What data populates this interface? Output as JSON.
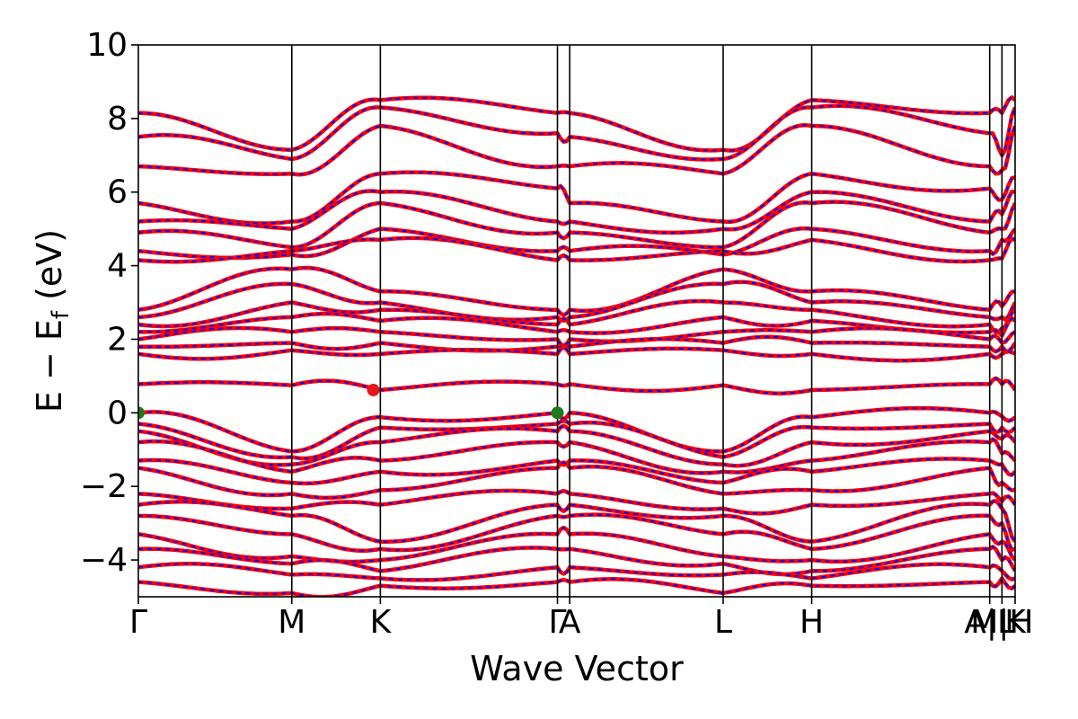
{
  "chart_data": {
    "type": "line",
    "title": "",
    "xlabel": "Wave Vector",
    "ylabel": "E − E_f (eV)",
    "ylabel_main": "E − E",
    "ylabel_sub": "f",
    "ylabel_unit": " (eV)",
    "ylim": [
      -5,
      10
    ],
    "yticks": [
      -4,
      -2,
      0,
      2,
      4,
      6,
      8,
      10
    ],
    "ytick_labels": [
      "−4",
      "−2",
      "0",
      "2",
      "4",
      "6",
      "8",
      "10"
    ],
    "xlim": [
      0,
      1
    ],
    "kpath": [
      {
        "label": "Γ",
        "x": 0.0
      },
      {
        "label": "M",
        "x": 0.175
      },
      {
        "label": "K",
        "x": 0.276
      },
      {
        "label": "Γ",
        "x": 0.478
      },
      {
        "label": "A",
        "x": 0.492
      },
      {
        "label": "L",
        "x": 0.667
      },
      {
        "label": "H",
        "x": 0.768
      },
      {
        "label": "A",
        "x": 0.971
      },
      {
        "label": "L",
        "x": 0.985
      },
      {
        "label": "M",
        "x": 0.971
      },
      {
        "label": "H",
        "x": 0.985
      },
      {
        "label": "K",
        "x": 1.0
      }
    ],
    "kpath_combined_labels": [
      {
        "label": "Γ",
        "x": 0.0
      },
      {
        "label": "M",
        "x": 0.175
      },
      {
        "label": "K",
        "x": 0.276
      },
      {
        "label": "Γ",
        "x": 0.478
      },
      {
        "label": "A",
        "x": 0.492
      },
      {
        "label": "L",
        "x": 0.667
      },
      {
        "label": "H",
        "x": 0.768
      },
      {
        "label": "A|L",
        "x": 0.971
      },
      {
        "label": "M|H",
        "x": 0.985
      },
      {
        "label": "K",
        "x": 1.0
      }
    ],
    "vertical_lines_x": [
      0.175,
      0.276,
      0.478,
      0.492,
      0.667,
      0.768,
      0.971,
      0.985
    ],
    "series": [
      {
        "color": "#ff0000",
        "style": "solid"
      },
      {
        "color": "#0000ff",
        "style": "dashed"
      }
    ],
    "bands": [
      {
        "node_energies": [
          8.15,
          7.15,
          8.5,
          8.15,
          8.15,
          7.15,
          8.5,
          8.15,
          8.15,
          8.5
        ]
      },
      {
        "node_energies": [
          7.5,
          6.9,
          8.3,
          7.6,
          7.5,
          6.9,
          8.3,
          7.6,
          7.0,
          8.3
        ]
      },
      {
        "node_energies": [
          6.7,
          6.5,
          7.8,
          6.7,
          6.7,
          6.5,
          7.8,
          6.7,
          6.6,
          7.8
        ]
      },
      {
        "node_energies": [
          5.7,
          5.2,
          6.5,
          6.1,
          5.7,
          5.2,
          6.5,
          6.1,
          5.8,
          6.4
        ]
      },
      {
        "node_energies": [
          5.2,
          5.0,
          6.0,
          5.2,
          5.2,
          5.0,
          6.0,
          5.2,
          5.4,
          6.0
        ]
      },
      {
        "node_energies": [
          4.9,
          4.5,
          5.7,
          4.9,
          4.9,
          4.5,
          5.7,
          4.9,
          5.0,
          5.7
        ]
      },
      {
        "node_energies": [
          4.4,
          4.3,
          5.0,
          4.4,
          4.4,
          4.3,
          5.0,
          4.4,
          4.7,
          5.0
        ]
      },
      {
        "node_energies": [
          4.15,
          4.4,
          4.7,
          4.15,
          4.15,
          4.4,
          4.7,
          4.15,
          4.2,
          4.7
        ]
      },
      {
        "node_energies": [
          2.8,
          3.9,
          3.3,
          2.8,
          2.8,
          3.9,
          3.3,
          2.8,
          2.9,
          3.3
        ]
      },
      {
        "node_energies": [
          2.6,
          3.5,
          3.0,
          2.6,
          2.6,
          3.5,
          3.0,
          2.6,
          2.6,
          3.0
        ]
      },
      {
        "node_energies": [
          2.4,
          3.0,
          2.8,
          2.4,
          2.4,
          3.0,
          2.8,
          2.4,
          2.3,
          2.8
        ]
      },
      {
        "node_energies": [
          2.2,
          2.6,
          2.5,
          2.2,
          2.2,
          2.6,
          2.5,
          2.2,
          2.1,
          2.5
        ]
      },
      {
        "node_energies": [
          2.0,
          2.2,
          2.2,
          2.0,
          2.0,
          2.2,
          2.2,
          2.0,
          1.9,
          2.2
        ]
      },
      {
        "node_energies": [
          1.8,
          1.9,
          1.9,
          1.8,
          1.8,
          1.9,
          1.9,
          1.8,
          1.8,
          1.9
        ]
      },
      {
        "node_energies": [
          1.6,
          1.7,
          1.6,
          1.6,
          1.6,
          1.7,
          1.6,
          1.6,
          1.6,
          1.6
        ]
      },
      {
        "node_energies": [
          0.78,
          0.75,
          0.62,
          0.78,
          0.78,
          0.75,
          0.62,
          0.78,
          0.78,
          0.62
        ]
      },
      {
        "node_energies": [
          0.0,
          -1.05,
          -0.12,
          0.0,
          0.0,
          -1.05,
          -0.12,
          0.0,
          -0.1,
          -0.12
        ]
      },
      {
        "node_energies": [
          -0.3,
          -1.2,
          -0.4,
          -0.3,
          -0.3,
          -1.2,
          -0.4,
          -0.3,
          -0.4,
          -0.4
        ]
      },
      {
        "node_energies": [
          -0.5,
          -1.4,
          -0.8,
          -0.5,
          -0.5,
          -1.4,
          -0.8,
          -0.5,
          -0.7,
          -0.8
        ]
      },
      {
        "node_energies": [
          -0.8,
          -1.6,
          -1.3,
          -0.8,
          -0.8,
          -1.6,
          -1.3,
          -0.8,
          -1.1,
          -1.3
        ]
      },
      {
        "node_energies": [
          -1.3,
          -1.9,
          -1.6,
          -1.3,
          -1.3,
          -1.9,
          -1.6,
          -1.3,
          -1.4,
          -1.6
        ]
      },
      {
        "node_energies": [
          -1.5,
          -2.2,
          -2.1,
          -1.5,
          -1.5,
          -2.2,
          -2.1,
          -1.5,
          -1.9,
          -2.1
        ]
      },
      {
        "node_energies": [
          -2.2,
          -2.6,
          -2.5,
          -2.2,
          -2.2,
          -2.6,
          -2.5,
          -2.2,
          -2.4,
          -2.5
        ]
      },
      {
        "node_energies": [
          -2.5,
          -2.8,
          -3.5,
          -2.5,
          -2.5,
          -2.8,
          -3.5,
          -2.5,
          -2.6,
          -3.5
        ]
      },
      {
        "node_energies": [
          -2.8,
          -3.3,
          -3.7,
          -2.8,
          -2.8,
          -3.3,
          -3.7,
          -2.8,
          -3.0,
          -3.7
        ]
      },
      {
        "node_energies": [
          -3.3,
          -3.9,
          -4.0,
          -3.3,
          -3.3,
          -3.9,
          -4.0,
          -3.3,
          -3.5,
          -4.0
        ]
      },
      {
        "node_energies": [
          -3.7,
          -4.1,
          -4.3,
          -3.7,
          -3.7,
          -4.1,
          -4.3,
          -3.7,
          -4.0,
          -4.3
        ]
      },
      {
        "node_energies": [
          -4.2,
          -4.4,
          -4.5,
          -4.2,
          -4.2,
          -4.4,
          -4.5,
          -4.2,
          -4.3,
          -4.5
        ]
      },
      {
        "node_energies": [
          -4.6,
          -4.9,
          -4.7,
          -4.6,
          -4.6,
          -4.9,
          -4.7,
          -4.6,
          -4.5,
          -4.7
        ]
      }
    ],
    "markers": [
      {
        "x": 0.0,
        "y": 0.0,
        "color": "#1f7a1f",
        "label": "VBM"
      },
      {
        "x": 0.478,
        "y": 0.0,
        "color": "#1f7a1f",
        "label": "VBM"
      },
      {
        "x": 0.268,
        "y": 0.62,
        "color": "#e8171c",
        "label": "CBM"
      }
    ],
    "grid": false,
    "legend": "none"
  }
}
